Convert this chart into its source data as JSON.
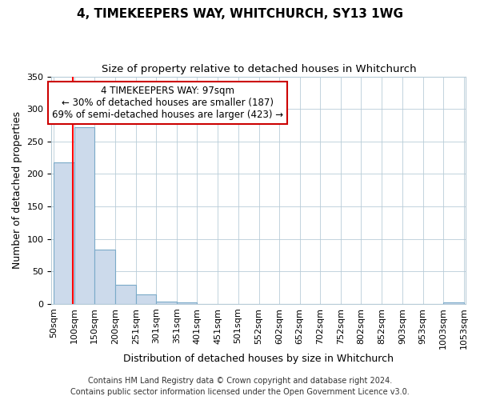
{
  "title": "4, TIMEKEEPERS WAY, WHITCHURCH, SY13 1WG",
  "subtitle": "Size of property relative to detached houses in Whitchurch",
  "xlabel": "Distribution of detached houses by size in Whitchurch",
  "ylabel": "Number of detached properties",
  "bar_edges": [
    50,
    100,
    150,
    200,
    251,
    301,
    351,
    401,
    451,
    501,
    552,
    602,
    652,
    702,
    752,
    802,
    852,
    903,
    953,
    1003,
    1053
  ],
  "bar_heights": [
    218,
    272,
    84,
    29,
    14,
    4,
    2,
    0,
    0,
    0,
    0,
    0,
    0,
    0,
    0,
    0,
    0,
    0,
    0,
    2
  ],
  "bar_color": "#ccdaeb",
  "bar_edge_color": "#7aaac8",
  "ylim": [
    0,
    350
  ],
  "yticks": [
    0,
    50,
    100,
    150,
    200,
    250,
    300,
    350
  ],
  "x_tick_labels": [
    "50sqm",
    "100sqm",
    "150sqm",
    "200sqm",
    "251sqm",
    "301sqm",
    "351sqm",
    "401sqm",
    "451sqm",
    "501sqm",
    "552sqm",
    "602sqm",
    "652sqm",
    "702sqm",
    "752sqm",
    "802sqm",
    "852sqm",
    "903sqm",
    "953sqm",
    "1003sqm",
    "1053sqm"
  ],
  "red_line_x": 97,
  "annotation_line1": "4 TIMEKEEPERS WAY: 97sqm",
  "annotation_line2": "← 30% of detached houses are smaller (187)",
  "annotation_line3": "69% of semi-detached houses are larger (423) →",
  "annotation_box_color": "#ffffff",
  "annotation_box_edge": "#cc0000",
  "annotation_text_color": "#000000",
  "footer_line1": "Contains HM Land Registry data © Crown copyright and database right 2024.",
  "footer_line2": "Contains public sector information licensed under the Open Government Licence v3.0.",
  "background_color": "#ffffff",
  "grid_color": "#b8ccd8",
  "title_fontsize": 11,
  "subtitle_fontsize": 9.5,
  "axis_label_fontsize": 9,
  "tick_fontsize": 8,
  "annotation_fontsize": 8.5,
  "footer_fontsize": 7
}
